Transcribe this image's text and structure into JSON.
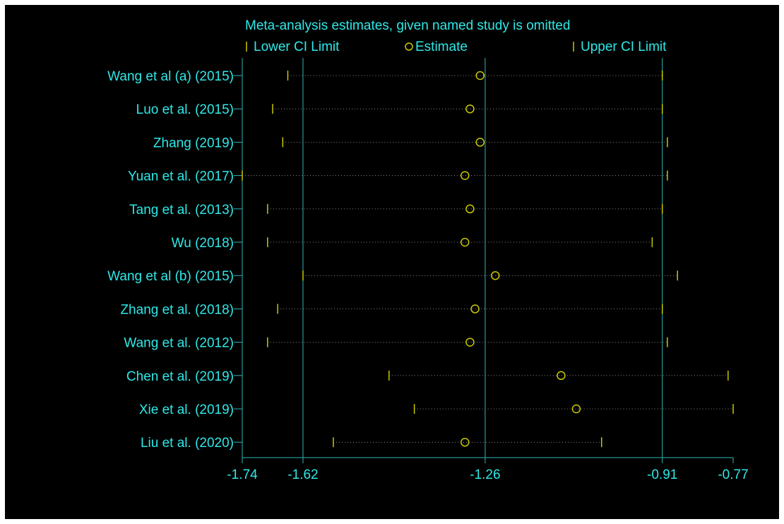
{
  "colors": {
    "background": "#000000",
    "text": "#2fe8e8",
    "axis": "#2fb6b6",
    "markers": "#c8c800",
    "dotted": "#8a8a8a"
  },
  "chart_data": {
    "type": "scatter",
    "title": "Meta-analysis estimates, given named study is omitted",
    "legend": {
      "placement": "top",
      "items": [
        {
          "key": "lower",
          "label": "Lower CI Limit"
        },
        {
          "key": "estimate",
          "label": "Estimate"
        },
        {
          "key": "upper",
          "label": "Upper CI Limit"
        }
      ]
    },
    "xlim": [
      -1.74,
      -0.77
    ],
    "x_ticks": [
      -1.74,
      -1.62,
      -1.26,
      -0.91,
      -0.77
    ],
    "x_tick_labels": [
      "-1.74",
      "-1.62",
      "-1.26",
      "-0.91",
      "-0.77"
    ],
    "reference_lines": [
      -1.62,
      -1.26,
      -0.91
    ],
    "studies": [
      {
        "label": "Wang et al (a) (2015)",
        "lower": -1.65,
        "estimate": -1.27,
        "upper": -0.91
      },
      {
        "label": "Luo et al.  (2015)",
        "lower": -1.68,
        "estimate": -1.29,
        "upper": -0.91
      },
      {
        "label": "Zhang  (2019)",
        "lower": -1.66,
        "estimate": -1.27,
        "upper": -0.9
      },
      {
        "label": "Yuan et al.  (2017)",
        "lower": -1.74,
        "estimate": -1.3,
        "upper": -0.9
      },
      {
        "label": "Tang et al.  (2013)",
        "lower": -1.69,
        "estimate": -1.29,
        "upper": -0.91
      },
      {
        "label": "Wu  (2018)",
        "lower": -1.69,
        "estimate": -1.3,
        "upper": -0.93
      },
      {
        "label": "Wang et al (b) (2015)",
        "lower": -1.62,
        "estimate": -1.24,
        "upper": -0.88
      },
      {
        "label": "Zhang et al.  (2018)",
        "lower": -1.67,
        "estimate": -1.28,
        "upper": -0.91
      },
      {
        "label": "Wang et al.  (2012)",
        "lower": -1.69,
        "estimate": -1.29,
        "upper": -0.9
      },
      {
        "label": "Chen et al.  (2019)",
        "lower": -1.45,
        "estimate": -1.11,
        "upper": -0.78
      },
      {
        "label": "Xie et al.  (2019)",
        "lower": -1.4,
        "estimate": -1.08,
        "upper": -0.77
      },
      {
        "label": "Liu et al. (2020)",
        "lower": -1.56,
        "estimate": -1.3,
        "upper": -1.03
      }
    ]
  }
}
